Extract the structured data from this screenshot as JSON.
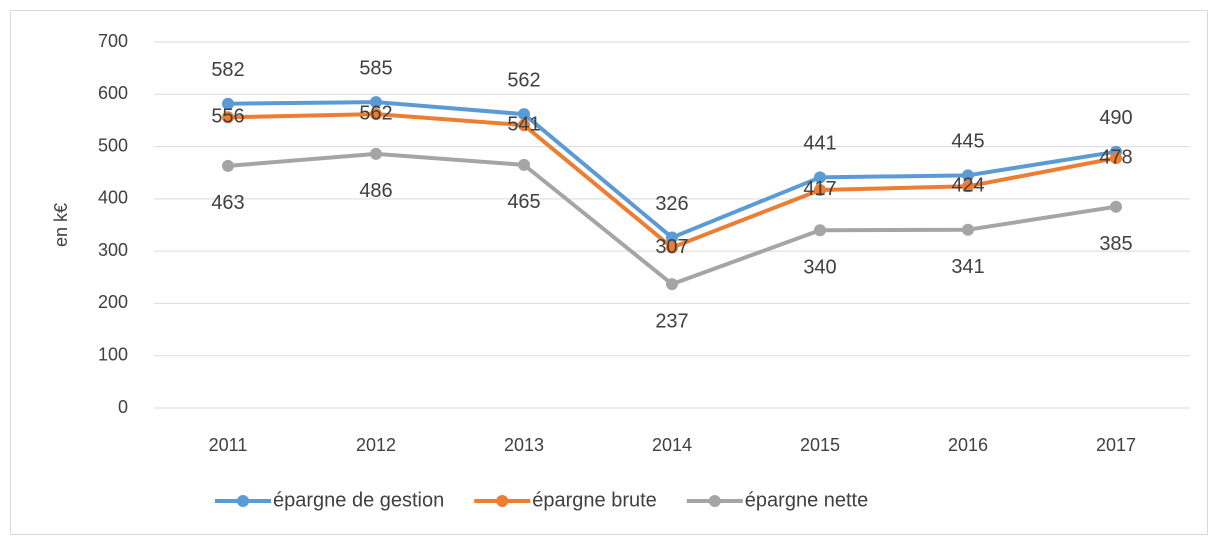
{
  "chart_data": {
    "type": "line",
    "y_axis_label": "en k€",
    "categories": [
      "2011",
      "2012",
      "2013",
      "2014",
      "2015",
      "2016",
      "2017"
    ],
    "series": [
      {
        "name": "épargne de gestion",
        "color": "#5b9bd5",
        "values": [
          582,
          585,
          562,
          326,
          441,
          445,
          490
        ]
      },
      {
        "name": "épargne brute",
        "color": "#ed7d31",
        "values": [
          556,
          562,
          541,
          307,
          417,
          424,
          478
        ]
      },
      {
        "name": "épargne nette",
        "color": "#a5a5a5",
        "values": [
          463,
          486,
          465,
          237,
          340,
          341,
          385
        ]
      }
    ],
    "ylim": [
      0,
      700
    ],
    "yticks": [
      0,
      100,
      200,
      300,
      400,
      500,
      600,
      700
    ],
    "grid": true,
    "legend": "bottom"
  }
}
